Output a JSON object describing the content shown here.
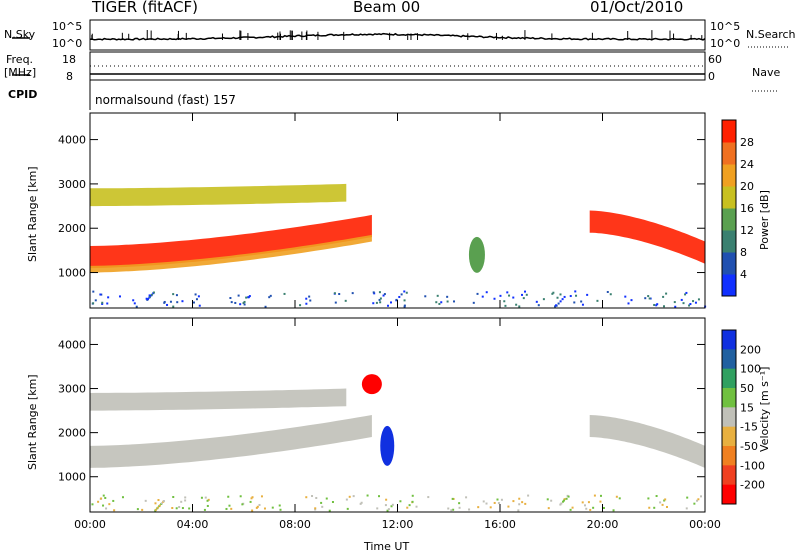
{
  "header": {
    "radar": "TIGER (fitACF)",
    "beam": "Beam 00",
    "date": "01/Oct/2010",
    "control_program": "normalsound (fast) 157"
  },
  "status_panels": {
    "nsky_label": "N.Sky",
    "nsky_ticks": [
      "10^5",
      "10^0"
    ],
    "nsearch_label": "N.Search",
    "nsearch_ticks": [
      "10^5",
      "10^0"
    ],
    "freq_label_line1": "Freq.",
    "freq_label_line2": "[MHz]",
    "freq_ticks": [
      "18",
      "8"
    ],
    "nave_label": "Nave",
    "nave_ticks": [
      "60",
      "0"
    ],
    "cpid_label": "CPID"
  },
  "chart_data": [
    {
      "type": "heatmap",
      "name": "power",
      "ylabel": "Slant Range [km]",
      "xlabel": "Time UT",
      "x_ticks": [
        "00:00",
        "04:00",
        "08:00",
        "12:00",
        "16:00",
        "20:00",
        "00:00"
      ],
      "y_ticks": [
        1000,
        2000,
        3000,
        4000
      ],
      "ylim": [
        200,
        4600
      ],
      "xlim_hours": [
        0,
        24
      ],
      "colorbar": {
        "label": "Power [dB]",
        "ticks": [
          4,
          8,
          12,
          16,
          20,
          24,
          28
        ],
        "colors": [
          "#1030ff",
          "#2050b0",
          "#3a8070",
          "#5aa050",
          "#c8c020",
          "#f0a020",
          "#f07020",
          "#ff2000"
        ]
      }
    },
    {
      "type": "heatmap",
      "name": "velocity",
      "ylabel": "Slant Range [km]",
      "xlabel": "Time UT",
      "x_ticks": [
        "00:00",
        "04:00",
        "08:00",
        "12:00",
        "16:00",
        "20:00",
        "00:00"
      ],
      "y_ticks": [
        1000,
        2000,
        3000,
        4000
      ],
      "ylim": [
        200,
        4600
      ],
      "xlim_hours": [
        0,
        24
      ],
      "colorbar": {
        "label": "Velocity [m s⁻¹]",
        "ticks": [
          200,
          100,
          50,
          15,
          -15,
          -50,
          -100,
          -200
        ],
        "colors": [
          "#1030e0",
          "#2060a0",
          "#30a060",
          "#70c040",
          "#c0c0b8",
          "#e8b040",
          "#f08020",
          "#f04020",
          "#ff0000"
        ]
      }
    }
  ]
}
